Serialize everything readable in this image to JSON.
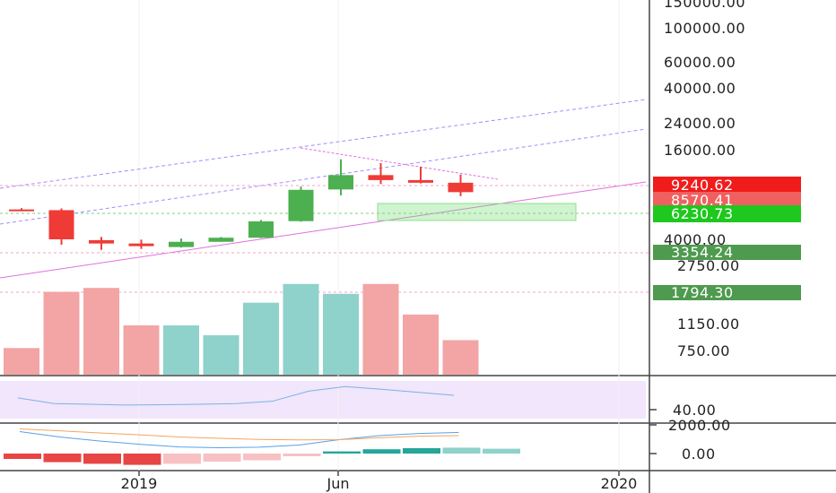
{
  "chart_data": {
    "type": "candlestick",
    "price_scale": "log",
    "price_axis_labels": [
      "150000.00",
      "100000.00",
      "60000.00",
      "40000.00",
      "24000.00",
      "16000.00",
      "4000.00",
      "2750.00",
      "1150.00",
      "750.00"
    ],
    "price_tags": [
      {
        "value": "9240.62",
        "color": "#f01c1c"
      },
      {
        "value": "8570.41",
        "color": "#f06060"
      },
      {
        "value": "6230.73",
        "color": "#1ec81e"
      },
      {
        "value": "3354.24",
        "color": "#4e9a4e"
      },
      {
        "value": "1794.30",
        "color": "#4e9a4e"
      }
    ],
    "time_labels": [
      "2019",
      "Jun",
      "2020"
    ],
    "candles": [
      {
        "open": 6350,
        "high": 6480,
        "low": 6200,
        "close": 6300
      },
      {
        "open": 6280,
        "high": 6450,
        "low": 3680,
        "close": 4000
      },
      {
        "open": 3950,
        "high": 4150,
        "low": 3400,
        "close": 3750
      },
      {
        "open": 3750,
        "high": 3980,
        "low": 3450,
        "close": 3600
      },
      {
        "open": 3550,
        "high": 4050,
        "low": 3520,
        "close": 3850
      },
      {
        "open": 3850,
        "high": 4150,
        "low": 3850,
        "close": 4100
      },
      {
        "open": 4100,
        "high": 5400,
        "low": 4080,
        "close": 5280
      },
      {
        "open": 5300,
        "high": 9050,
        "low": 5250,
        "close": 8600
      },
      {
        "open": 8650,
        "high": 13800,
        "low": 7900,
        "close": 10800
      },
      {
        "open": 10800,
        "high": 13000,
        "low": 9400,
        "close": 10000
      },
      {
        "open": 10000,
        "high": 12300,
        "low": 9500,
        "close": 9600
      },
      {
        "open": 9600,
        "high": 10900,
        "low": 7800,
        "close": 8300
      }
    ],
    "volume": [
      {
        "value": 0.27,
        "up": false
      },
      {
        "value": 0.84,
        "up": false
      },
      {
        "value": 0.88,
        "up": false
      },
      {
        "value": 0.5,
        "up": false
      },
      {
        "value": 0.5,
        "up": true
      },
      {
        "value": 0.4,
        "up": true
      },
      {
        "value": 0.73,
        "up": true
      },
      {
        "value": 0.92,
        "up": true
      },
      {
        "value": 0.82,
        "up": true
      },
      {
        "value": 0.92,
        "up": false
      },
      {
        "value": 0.61,
        "up": false
      },
      {
        "value": 0.35,
        "up": false
      }
    ],
    "oscillator": {
      "axis_label": "40.00",
      "values": [
        0.55,
        0.4,
        0.38,
        0.36,
        0.37,
        0.38,
        0.4,
        0.46,
        0.73,
        0.85,
        0.78,
        0.7,
        0.62
      ]
    },
    "macd": {
      "axis_labels": [
        "2000.00",
        "0.00"
      ],
      "histogram": [
        -0.2,
        -0.32,
        -0.38,
        -0.42,
        -0.38,
        -0.3,
        -0.25,
        -0.1,
        0.08,
        0.16,
        0.2,
        0.22,
        0.18
      ],
      "macd_line": [
        0.75,
        0.55,
        0.4,
        0.28,
        0.18,
        0.15,
        0.17,
        0.25,
        0.45,
        0.6,
        0.68,
        0.72
      ],
      "signal_line": [
        0.85,
        0.78,
        0.7,
        0.63,
        0.55,
        0.5,
        0.46,
        0.44,
        0.45,
        0.52,
        0.58,
        0.6
      ]
    },
    "colors": {
      "up": "#4caf50",
      "down": "#ef3b36",
      "volume_up": "#8fd1cb",
      "volume_down": "#f3a4a4",
      "osc_band": "#f1e6fb",
      "trend": "#a78bfa",
      "pink": "#e070e0"
    }
  }
}
